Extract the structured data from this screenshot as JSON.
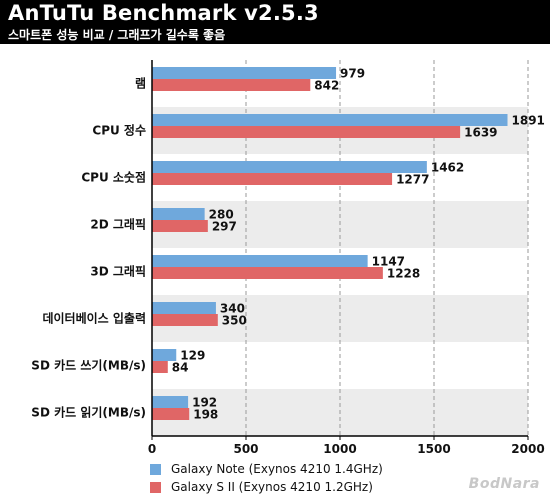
{
  "header": {
    "title": "AnTuTu Benchmark v2.5.3",
    "subtitle": "스마트폰 성능 비교 / 그래프가 길수록 좋음"
  },
  "chart_data": {
    "type": "bar",
    "orientation": "horizontal",
    "categories": [
      "램",
      "CPU 정수",
      "CPU 소숫점",
      "2D 그래픽",
      "3D 그래픽",
      "데이터베이스 입출력",
      "SD 카드 쓰기(MB/s)",
      "SD 카드 읽기(MB/s)"
    ],
    "series": [
      {
        "name": "Galaxy Note (Exynos 4210 1.4GHz)",
        "color": "#6fa8dc",
        "values": [
          979,
          1891,
          1462,
          280,
          1147,
          340,
          129,
          192
        ]
      },
      {
        "name": "Galaxy S II (Exynos 4210 1.2GHz)",
        "color": "#e06666",
        "values": [
          842,
          1639,
          1277,
          297,
          1228,
          350,
          84,
          198
        ]
      }
    ],
    "xlim": [
      0,
      2000
    ],
    "xticks": [
      "0",
      "500",
      "1000",
      "1500",
      "2000"
    ],
    "grid": true,
    "grid_style": "dashed",
    "alternating_row_colors": [
      "#ffffff",
      "#ececec"
    ],
    "legend_position": "bottom-center"
  },
  "watermark": "BodNara"
}
